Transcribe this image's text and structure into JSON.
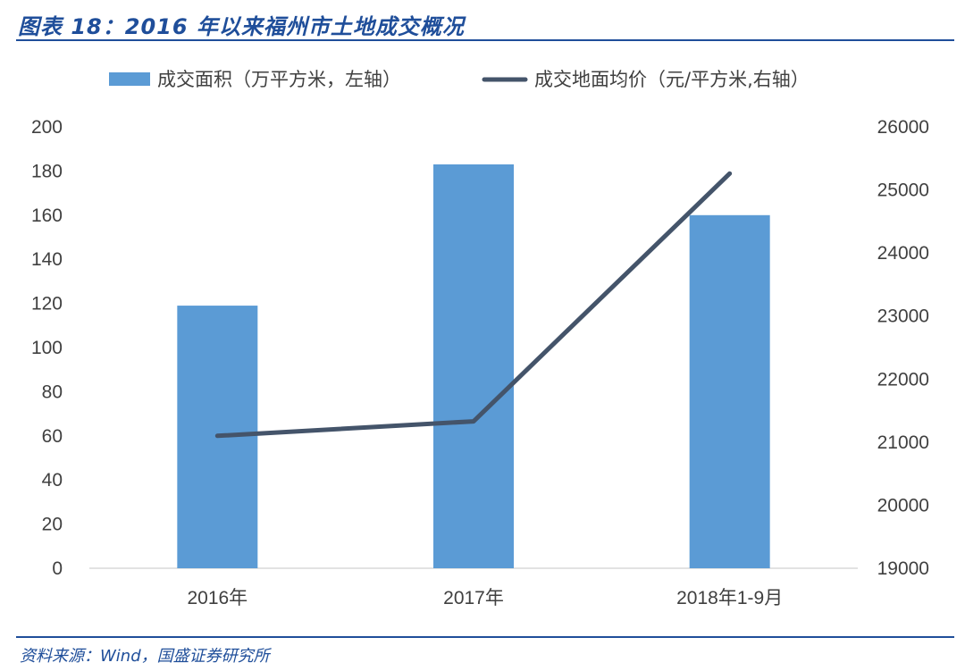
{
  "header": {
    "title": "图表 18：2016 年以来福州市土地成交概况"
  },
  "footer": {
    "source": "资料来源：Wind，国盛证券研究所"
  },
  "colors": {
    "bar": "#5b9bd5",
    "line": "#44546a",
    "title": "#1f4e9a",
    "axis": "#d9d9d9",
    "text": "#404040"
  },
  "chart_data": {
    "type": "bar",
    "title": "",
    "categories": [
      "2016年",
      "2017年",
      "2018年1-9月"
    ],
    "series": [
      {
        "name": "成交面积（万平方米，左轴）",
        "type": "bar",
        "axis": "left",
        "values": [
          119,
          183,
          160
        ]
      },
      {
        "name": "成交地面均价（元/平方米,右轴）",
        "type": "line",
        "axis": "right",
        "values": [
          21100,
          21330,
          25260
        ]
      }
    ],
    "y_left": {
      "min": 0,
      "max": 200,
      "ticks": [
        "0",
        "20",
        "40",
        "60",
        "80",
        "100",
        "120",
        "140",
        "160",
        "180",
        "200"
      ]
    },
    "y_right": {
      "min": 19000,
      "max": 26000,
      "ticks": [
        "19000",
        "20000",
        "21000",
        "22000",
        "23000",
        "24000",
        "25000",
        "26000"
      ]
    },
    "legend_position": "top",
    "grid": false
  }
}
